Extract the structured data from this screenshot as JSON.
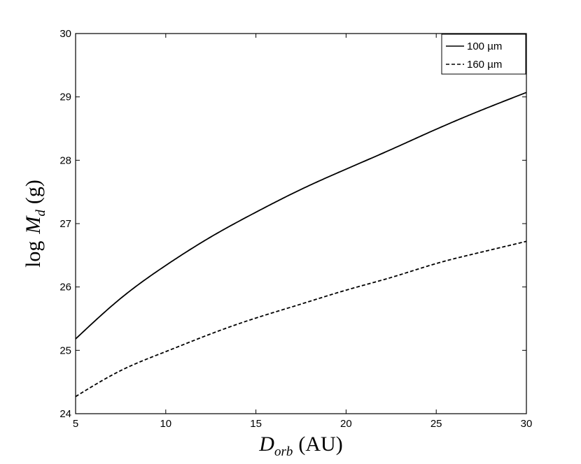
{
  "chart_data": {
    "type": "line",
    "xlabel": {
      "symbol": "D",
      "subscript": "orb",
      "unit": "(AU)"
    },
    "ylabel": {
      "prefix": "log",
      "symbol": "M",
      "subscript": "d",
      "unit": "(g)"
    },
    "xlim": [
      5,
      30
    ],
    "ylim": [
      24,
      30
    ],
    "xticks": [
      5,
      10,
      15,
      20,
      25,
      30
    ],
    "yticks": [
      24,
      25,
      26,
      27,
      28,
      29,
      30
    ],
    "grid": false,
    "legend_position": "top-right",
    "x": [
      5,
      7.5,
      10,
      12.5,
      15,
      17.5,
      20,
      22.5,
      25,
      27.5,
      30
    ],
    "series": [
      {
        "name": "100 µm",
        "line_style": "solid",
        "color": "#000000",
        "values": [
          25.18,
          25.82,
          26.34,
          26.79,
          27.18,
          27.54,
          27.86,
          28.17,
          28.49,
          28.79,
          29.07
        ]
      },
      {
        "name": "160 µm",
        "line_style": "dashed",
        "color": "#000000",
        "values": [
          24.27,
          24.68,
          24.98,
          25.26,
          25.51,
          25.73,
          25.95,
          26.15,
          26.37,
          26.55,
          26.72
        ]
      }
    ]
  }
}
